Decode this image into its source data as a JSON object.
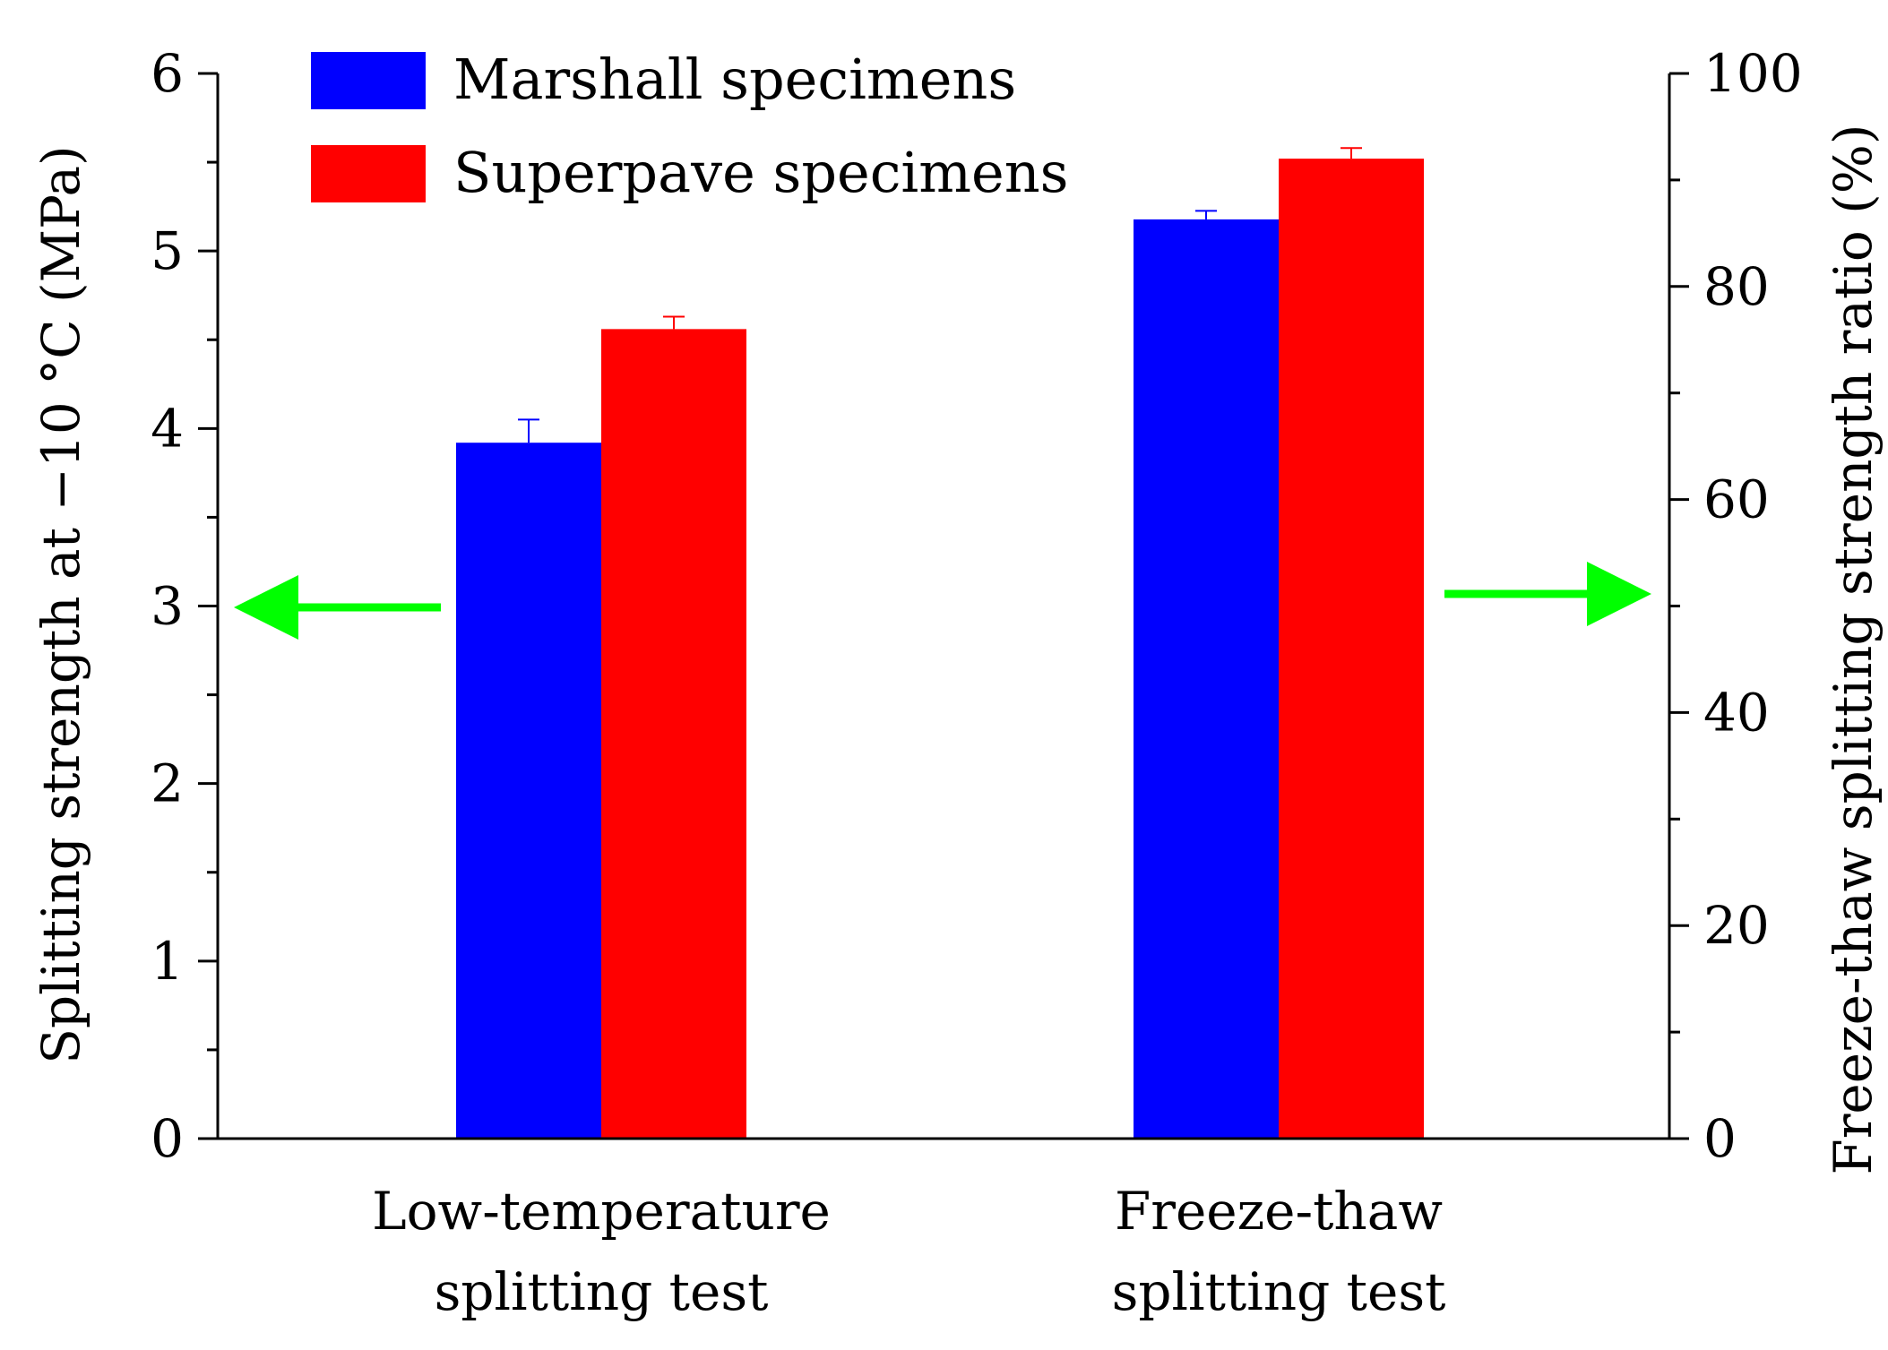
{
  "chart_data": {
    "type": "bar",
    "categories": [
      [
        "Low-temperature",
        "splitting test"
      ],
      [
        "Freeze-thaw",
        "splitting test"
      ]
    ],
    "series": [
      {
        "name": "Marshall specimens",
        "color": "#0000ff",
        "values": [
          3.92,
          86.3
        ],
        "errors": [
          0.13,
          0.8
        ],
        "axis": [
          "left",
          "right"
        ]
      },
      {
        "name": "Superpave specimens",
        "color": "#ff0000",
        "values": [
          4.56,
          92.0
        ],
        "errors": [
          0.07,
          1.0
        ],
        "axis": [
          "left",
          "right"
        ]
      }
    ],
    "left_axis": {
      "label": "Splitting strength at −10 °C (MPa)",
      "ylim": [
        0,
        6
      ],
      "ticks": [
        "0",
        "1",
        "2",
        "3",
        "4",
        "5",
        "6"
      ]
    },
    "right_axis": {
      "label": "Freeze-thaw splitting strength ratio (%)",
      "ylim": [
        0,
        100
      ],
      "ticks": [
        "0",
        "20",
        "40",
        "60",
        "80",
        "100"
      ]
    },
    "arrows": [
      {
        "group": "Low-temperature splitting test",
        "points_to": "left axis",
        "color": "#00ff00"
      },
      {
        "group": "Freeze-thaw splitting test",
        "points_to": "right axis",
        "color": "#00ff00"
      }
    ],
    "legend_position": "top-left",
    "grid": false
  }
}
